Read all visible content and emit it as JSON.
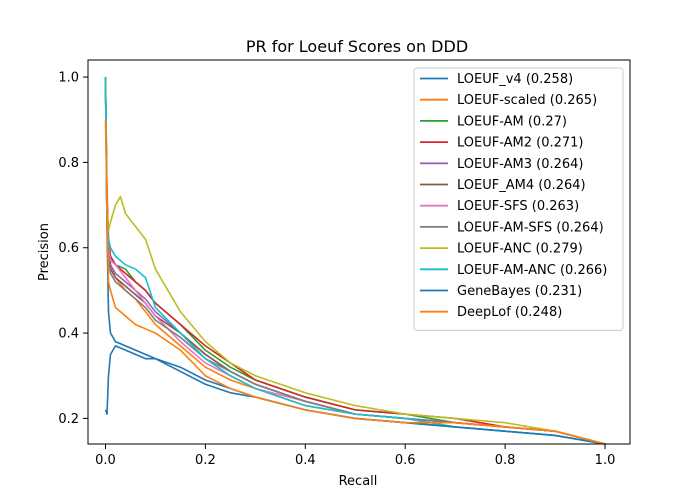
{
  "chart_data": {
    "type": "line",
    "title": "PR for Loeuf Scores on DDD",
    "xlabel": "Recall",
    "ylabel": "Precision",
    "xlim": [
      -0.035,
      1.05
    ],
    "ylim": [
      0.14,
      1.04
    ],
    "xticks": [
      0.0,
      0.2,
      0.4,
      0.6,
      0.8,
      1.0
    ],
    "yticks": [
      0.2,
      0.4,
      0.6,
      0.8,
      1.0
    ],
    "xtick_labels": [
      "0.0",
      "0.2",
      "0.4",
      "0.6",
      "0.8",
      "1.0"
    ],
    "ytick_labels": [
      "0.2",
      "0.4",
      "0.6",
      "0.8",
      "1.0"
    ],
    "grid": false,
    "legend_position": "top-right",
    "series": [
      {
        "name": "LOEUF_v4 (0.258)",
        "color": "#1f77b4",
        "x": [
          0.0,
          0.003,
          0.006,
          0.01,
          0.02,
          0.04,
          0.06,
          0.08,
          0.1,
          0.15,
          0.2,
          0.25,
          0.3,
          0.4,
          0.5,
          0.6,
          0.7,
          0.8,
          0.9,
          1.0
        ],
        "y": [
          1.0,
          0.65,
          0.45,
          0.4,
          0.38,
          0.37,
          0.36,
          0.35,
          0.34,
          0.32,
          0.29,
          0.27,
          0.25,
          0.22,
          0.2,
          0.19,
          0.18,
          0.17,
          0.16,
          0.14
        ]
      },
      {
        "name": "LOEUF-scaled (0.265)",
        "color": "#ff7f0e",
        "x": [
          0.0,
          0.003,
          0.006,
          0.01,
          0.02,
          0.04,
          0.06,
          0.08,
          0.1,
          0.15,
          0.2,
          0.25,
          0.3,
          0.4,
          0.5,
          0.6,
          0.7,
          0.8,
          0.9,
          1.0
        ],
        "y": [
          1.0,
          0.74,
          0.62,
          0.56,
          0.53,
          0.5,
          0.48,
          0.45,
          0.42,
          0.37,
          0.32,
          0.29,
          0.27,
          0.23,
          0.21,
          0.2,
          0.19,
          0.18,
          0.17,
          0.14
        ]
      },
      {
        "name": "LOEUF-AM (0.27)",
        "color": "#2ca02c",
        "x": [
          0.0,
          0.003,
          0.006,
          0.01,
          0.02,
          0.04,
          0.06,
          0.08,
          0.1,
          0.15,
          0.2,
          0.25,
          0.3,
          0.4,
          0.5,
          0.6,
          0.7,
          0.8,
          0.9,
          1.0
        ],
        "y": [
          1.0,
          0.7,
          0.62,
          0.58,
          0.56,
          0.55,
          0.52,
          0.5,
          0.47,
          0.42,
          0.36,
          0.32,
          0.29,
          0.25,
          0.22,
          0.21,
          0.19,
          0.18,
          0.17,
          0.14
        ]
      },
      {
        "name": "LOEUF-AM2 (0.271)",
        "color": "#d62728",
        "x": [
          0.0,
          0.003,
          0.006,
          0.01,
          0.02,
          0.04,
          0.06,
          0.08,
          0.1,
          0.15,
          0.2,
          0.25,
          0.3,
          0.4,
          0.5,
          0.6,
          0.7,
          0.8,
          0.9,
          1.0
        ],
        "y": [
          1.0,
          0.72,
          0.62,
          0.58,
          0.56,
          0.54,
          0.52,
          0.5,
          0.47,
          0.42,
          0.37,
          0.33,
          0.29,
          0.25,
          0.22,
          0.21,
          0.2,
          0.18,
          0.17,
          0.14
        ]
      },
      {
        "name": "LOEUF-AM3 (0.264)",
        "color": "#9467bd",
        "x": [
          0.0,
          0.003,
          0.006,
          0.01,
          0.02,
          0.04,
          0.06,
          0.08,
          0.1,
          0.15,
          0.2,
          0.25,
          0.3,
          0.4,
          0.5,
          0.6,
          0.7,
          0.8,
          0.9,
          1.0
        ],
        "y": [
          1.0,
          0.68,
          0.6,
          0.56,
          0.54,
          0.52,
          0.5,
          0.48,
          0.45,
          0.4,
          0.35,
          0.31,
          0.28,
          0.24,
          0.21,
          0.2,
          0.19,
          0.18,
          0.17,
          0.14
        ]
      },
      {
        "name": "LOEUF_AM4 (0.264)",
        "color": "#8c564b",
        "x": [
          0.0,
          0.003,
          0.006,
          0.01,
          0.02,
          0.04,
          0.06,
          0.08,
          0.1,
          0.15,
          0.2,
          0.25,
          0.3,
          0.4,
          0.5,
          0.6,
          0.7,
          0.8,
          0.9,
          1.0
        ],
        "y": [
          1.0,
          0.67,
          0.59,
          0.55,
          0.53,
          0.51,
          0.49,
          0.47,
          0.44,
          0.4,
          0.35,
          0.31,
          0.28,
          0.24,
          0.21,
          0.2,
          0.19,
          0.18,
          0.17,
          0.14
        ]
      },
      {
        "name": "LOEUF-SFS (0.263)",
        "color": "#e377c2",
        "x": [
          0.0,
          0.003,
          0.006,
          0.01,
          0.02,
          0.04,
          0.06,
          0.08,
          0.1,
          0.15,
          0.2,
          0.25,
          0.3,
          0.4,
          0.5,
          0.6,
          0.7,
          0.8,
          0.9,
          1.0
        ],
        "y": [
          1.0,
          0.66,
          0.6,
          0.57,
          0.56,
          0.53,
          0.5,
          0.47,
          0.44,
          0.38,
          0.33,
          0.3,
          0.27,
          0.24,
          0.21,
          0.2,
          0.19,
          0.18,
          0.17,
          0.14
        ]
      },
      {
        "name": "LOEUF-AM-SFS (0.264)",
        "color": "#7f7f7f",
        "x": [
          0.0,
          0.003,
          0.006,
          0.01,
          0.02,
          0.04,
          0.06,
          0.08,
          0.1,
          0.15,
          0.2,
          0.25,
          0.3,
          0.4,
          0.5,
          0.6,
          0.7,
          0.8,
          0.9,
          1.0
        ],
        "y": [
          1.0,
          0.65,
          0.58,
          0.54,
          0.52,
          0.5,
          0.48,
          0.46,
          0.43,
          0.39,
          0.34,
          0.31,
          0.28,
          0.24,
          0.21,
          0.2,
          0.19,
          0.18,
          0.17,
          0.14
        ]
      },
      {
        "name": "LOEUF-ANC (0.279)",
        "color": "#bcbd22",
        "x": [
          0.0,
          0.003,
          0.006,
          0.01,
          0.02,
          0.03,
          0.04,
          0.06,
          0.08,
          0.1,
          0.15,
          0.2,
          0.25,
          0.3,
          0.4,
          0.5,
          0.6,
          0.7,
          0.8,
          0.9,
          1.0
        ],
        "y": [
          1.0,
          0.7,
          0.64,
          0.66,
          0.7,
          0.72,
          0.68,
          0.65,
          0.62,
          0.55,
          0.45,
          0.38,
          0.33,
          0.3,
          0.26,
          0.23,
          0.21,
          0.2,
          0.19,
          0.17,
          0.14
        ]
      },
      {
        "name": "LOEUF-AM-ANC (0.266)",
        "color": "#17becf",
        "x": [
          0.0,
          0.003,
          0.006,
          0.01,
          0.02,
          0.04,
          0.06,
          0.08,
          0.1,
          0.15,
          0.2,
          0.25,
          0.3,
          0.4,
          0.5,
          0.6,
          0.7,
          0.8,
          0.9,
          1.0
        ],
        "y": [
          1.0,
          0.66,
          0.62,
          0.6,
          0.58,
          0.56,
          0.55,
          0.53,
          0.46,
          0.4,
          0.34,
          0.3,
          0.27,
          0.23,
          0.21,
          0.2,
          0.18,
          0.17,
          0.16,
          0.14
        ]
      },
      {
        "name": "GeneBayes (0.231)",
        "color": "#1f77b4",
        "x": [
          0.0,
          0.003,
          0.006,
          0.01,
          0.02,
          0.04,
          0.06,
          0.08,
          0.1,
          0.15,
          0.2,
          0.25,
          0.3,
          0.4,
          0.5,
          0.6,
          0.7,
          0.8,
          0.9,
          1.0
        ],
        "y": [
          0.22,
          0.21,
          0.3,
          0.35,
          0.37,
          0.36,
          0.35,
          0.34,
          0.34,
          0.31,
          0.28,
          0.26,
          0.25,
          0.22,
          0.2,
          0.19,
          0.18,
          0.17,
          0.16,
          0.14
        ]
      },
      {
        "name": "DeepLof (0.248)",
        "color": "#ff7f0e",
        "x": [
          0.0,
          0.003,
          0.006,
          0.01,
          0.02,
          0.04,
          0.06,
          0.08,
          0.1,
          0.15,
          0.2,
          0.25,
          0.3,
          0.4,
          0.5,
          0.6,
          0.7,
          0.8,
          0.9,
          1.0
        ],
        "y": [
          0.9,
          0.7,
          0.52,
          0.5,
          0.46,
          0.44,
          0.42,
          0.41,
          0.4,
          0.36,
          0.3,
          0.27,
          0.25,
          0.22,
          0.2,
          0.19,
          0.19,
          0.18,
          0.17,
          0.14
        ]
      }
    ]
  }
}
